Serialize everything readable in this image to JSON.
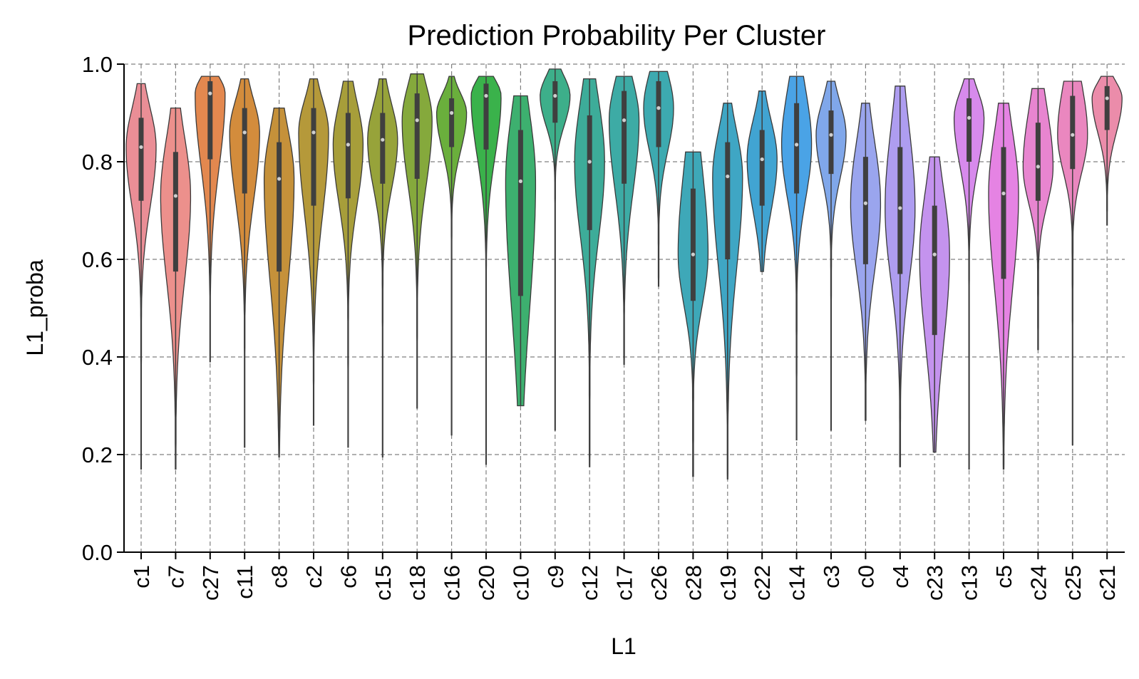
{
  "chart_data": {
    "type": "violin",
    "title": "Prediction Probability Per Cluster",
    "xlabel": "L1",
    "ylabel": "L1_proba",
    "ylim": [
      0.0,
      1.0
    ],
    "yticks": [
      "0.0",
      "0.2",
      "0.4",
      "0.6",
      "0.8",
      "1.0"
    ],
    "grid": true,
    "categories": [
      "c1",
      "c7",
      "c27",
      "c11",
      "c8",
      "c2",
      "c6",
      "c15",
      "c18",
      "c16",
      "c20",
      "c10",
      "c9",
      "c12",
      "c17",
      "c26",
      "c28",
      "c19",
      "c22",
      "c14",
      "c3",
      "c0",
      "c4",
      "c23",
      "c13",
      "c5",
      "c24",
      "c25",
      "c21"
    ],
    "colors": [
      "#ea8e96",
      "#ec908c",
      "#e3884f",
      "#d38c3c",
      "#c5913a",
      "#b5993a",
      "#a79e3a",
      "#97a33a",
      "#85a93c",
      "#6aaf3c",
      "#3ab24b",
      "#3db06f",
      "#3daf8a",
      "#3dac99",
      "#3daba5",
      "#3daab0",
      "#3ea8b8",
      "#3fa6c4",
      "#41a4d2",
      "#4aa3e6",
      "#80a7ea",
      "#9aa5ee",
      "#ae9df0",
      "#c493ee",
      "#d78aec",
      "#e583e3",
      "#e885d0",
      "#ea87bf",
      "#eb8caa"
    ],
    "stats": [
      {
        "name": "c1",
        "min": 0.17,
        "max": 0.96,
        "q1": 0.72,
        "median": 0.83,
        "q3": 0.89
      },
      {
        "name": "c7",
        "min": 0.17,
        "max": 0.91,
        "q1": 0.575,
        "median": 0.73,
        "q3": 0.82
      },
      {
        "name": "c27",
        "min": 0.39,
        "max": 0.975,
        "q1": 0.805,
        "median": 0.94,
        "q3": 0.965
      },
      {
        "name": "c11",
        "min": 0.215,
        "max": 0.97,
        "q1": 0.735,
        "median": 0.86,
        "q3": 0.91
      },
      {
        "name": "c8",
        "min": 0.195,
        "max": 0.91,
        "q1": 0.575,
        "median": 0.765,
        "q3": 0.84
      },
      {
        "name": "c2",
        "min": 0.26,
        "max": 0.97,
        "q1": 0.71,
        "median": 0.86,
        "q3": 0.91
      },
      {
        "name": "c6",
        "min": 0.215,
        "max": 0.965,
        "q1": 0.725,
        "median": 0.835,
        "q3": 0.9
      },
      {
        "name": "c15",
        "min": 0.195,
        "max": 0.97,
        "q1": 0.755,
        "median": 0.845,
        "q3": 0.9
      },
      {
        "name": "c18",
        "min": 0.295,
        "max": 0.98,
        "q1": 0.765,
        "median": 0.885,
        "q3": 0.94
      },
      {
        "name": "c16",
        "min": 0.24,
        "max": 0.975,
        "q1": 0.83,
        "median": 0.9,
        "q3": 0.93
      },
      {
        "name": "c20",
        "min": 0.18,
        "max": 0.975,
        "q1": 0.825,
        "median": 0.935,
        "q3": 0.96
      },
      {
        "name": "c10",
        "min": 0.3,
        "max": 0.935,
        "q1": 0.525,
        "median": 0.76,
        "q3": 0.865
      },
      {
        "name": "c9",
        "min": 0.25,
        "max": 0.99,
        "q1": 0.88,
        "median": 0.935,
        "q3": 0.965
      },
      {
        "name": "c12",
        "min": 0.175,
        "max": 0.97,
        "q1": 0.66,
        "median": 0.8,
        "q3": 0.895
      },
      {
        "name": "c17",
        "min": 0.385,
        "max": 0.975,
        "q1": 0.755,
        "median": 0.885,
        "q3": 0.945
      },
      {
        "name": "c26",
        "min": 0.545,
        "max": 0.985,
        "q1": 0.83,
        "median": 0.91,
        "q3": 0.965
      },
      {
        "name": "c28",
        "min": 0.155,
        "max": 0.82,
        "q1": 0.515,
        "median": 0.61,
        "q3": 0.745
      },
      {
        "name": "c19",
        "min": 0.15,
        "max": 0.92,
        "q1": 0.6,
        "median": 0.77,
        "q3": 0.84
      },
      {
        "name": "c22",
        "min": 0.575,
        "max": 0.945,
        "q1": 0.71,
        "median": 0.805,
        "q3": 0.865
      },
      {
        "name": "c14",
        "min": 0.23,
        "max": 0.975,
        "q1": 0.735,
        "median": 0.835,
        "q3": 0.92
      },
      {
        "name": "c3",
        "min": 0.25,
        "max": 0.965,
        "q1": 0.775,
        "median": 0.855,
        "q3": 0.905
      },
      {
        "name": "c0",
        "min": 0.27,
        "max": 0.92,
        "q1": 0.59,
        "median": 0.715,
        "q3": 0.81
      },
      {
        "name": "c4",
        "min": 0.175,
        "max": 0.955,
        "q1": 0.57,
        "median": 0.705,
        "q3": 0.83
      },
      {
        "name": "c23",
        "min": 0.205,
        "max": 0.81,
        "q1": 0.445,
        "median": 0.61,
        "q3": 0.71
      },
      {
        "name": "c13",
        "min": 0.17,
        "max": 0.97,
        "q1": 0.8,
        "median": 0.89,
        "q3": 0.93
      },
      {
        "name": "c5",
        "min": 0.17,
        "max": 0.92,
        "q1": 0.56,
        "median": 0.735,
        "q3": 0.83
      },
      {
        "name": "c24",
        "min": 0.415,
        "max": 0.95,
        "q1": 0.72,
        "median": 0.79,
        "q3": 0.88
      },
      {
        "name": "c25",
        "min": 0.22,
        "max": 0.965,
        "q1": 0.785,
        "median": 0.855,
        "q3": 0.935
      },
      {
        "name": "c21",
        "min": 0.67,
        "max": 0.975,
        "q1": 0.865,
        "median": 0.93,
        "q3": 0.955
      }
    ]
  }
}
